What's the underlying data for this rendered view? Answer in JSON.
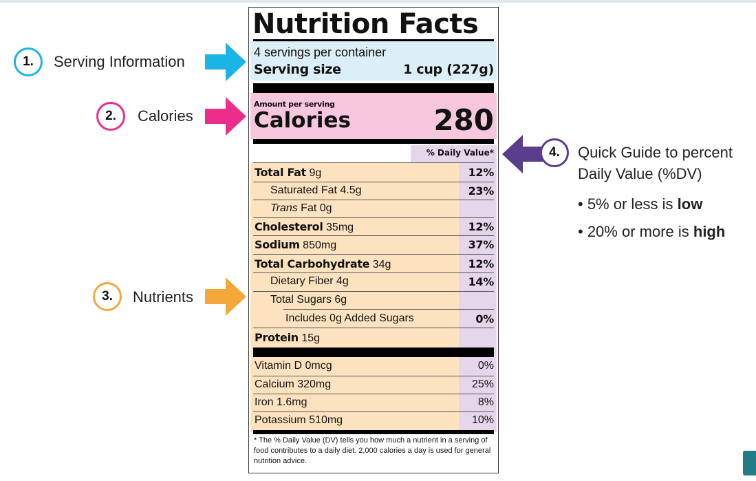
{
  "callouts": [
    {
      "number": "1.",
      "label": "Serving Information",
      "color": "#1ab4e6"
    },
    {
      "number": "2.",
      "label": "Calories",
      "color": "#ec2d8c"
    },
    {
      "number": "3.",
      "label": "Nutrients",
      "color": "#f5a83a"
    },
    {
      "number": "4.",
      "label": "Quick Guide to percent",
      "label2": "Daily Value (%DV)",
      "color": "#5a3d8c"
    }
  ],
  "guide": {
    "low_prefix": "• 5% or less is ",
    "low_bold": "low",
    "high_prefix": "• 20% or more is ",
    "high_bold": "high"
  },
  "label": {
    "title": "Nutrition Facts",
    "servings_per_container": "4 servings per container",
    "serving_size_label": "Serving size",
    "serving_size_value": "1 cup (227g)",
    "amount_per_serving": "Amount per serving",
    "calories_label": "Calories",
    "calories_value": "280",
    "dv_header": "% Daily Value*",
    "nutrients": [
      {
        "name": "Total Fat",
        "amount": "9g",
        "dv": "12%"
      },
      {
        "name": "Saturated Fat",
        "amount": "4.5g",
        "dv": "23%"
      },
      {
        "name_italic": "Trans",
        "name": " Fat",
        "amount": "0g",
        "dv": ""
      },
      {
        "name": "Cholesterol",
        "amount": "35mg",
        "dv": "12%"
      },
      {
        "name": "Sodium",
        "amount": "850mg",
        "dv": "37%"
      },
      {
        "name": "Total Carbohydrate",
        "amount": "34g",
        "dv": "12%"
      },
      {
        "name": "Dietary Fiber",
        "amount": "4g",
        "dv": "14%"
      },
      {
        "name": "Total Sugars",
        "amount": "6g",
        "dv": ""
      },
      {
        "name": "Includes 0g Added Sugars",
        "amount": "",
        "dv": "0%"
      },
      {
        "name": "Protein",
        "amount": "15g",
        "dv": ""
      }
    ],
    "vitamins": [
      {
        "name": "Vitamin D 0mcg",
        "dv": "0%"
      },
      {
        "name": "Calcium 320mg",
        "dv": "25%"
      },
      {
        "name": "Iron 1.6mg",
        "dv": "8%"
      },
      {
        "name": "Potassium 510mg",
        "dv": "10%"
      }
    ],
    "footnote": "* The % Daily Value (DV) tells you how much a nutrient in a serving of food contributes to a daily diet. 2,000 calories a day is used for general nutrition advice."
  }
}
